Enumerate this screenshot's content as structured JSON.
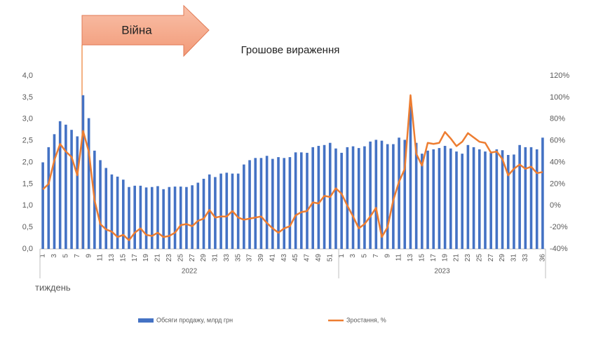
{
  "chart_data": {
    "type": "bar-line",
    "title": "Грошове вираження",
    "annotation": "Війна",
    "x_label": "тиждень",
    "groups": [
      "2022",
      "2023"
    ],
    "categories": [
      "1",
      null,
      "3",
      null,
      "5",
      null,
      "7",
      null,
      "9",
      null,
      "11",
      null,
      "13",
      null,
      "15",
      null,
      "17",
      null,
      "19",
      null,
      "21",
      null,
      "23",
      null,
      "25",
      null,
      "27",
      null,
      "29",
      null,
      "31",
      null,
      "33",
      null,
      "35",
      null,
      "37",
      null,
      "39",
      null,
      "41",
      null,
      "43",
      null,
      "45",
      null,
      "47",
      null,
      "49",
      null,
      "51",
      null,
      "1",
      null,
      "3",
      null,
      "5",
      null,
      "7",
      null,
      "9",
      null,
      "11",
      null,
      "13",
      null,
      "15",
      null,
      "17",
      null,
      "19",
      null,
      "21",
      null,
      "23",
      null,
      "25",
      null,
      "27",
      null,
      "29",
      null,
      "31",
      null,
      "33",
      null,
      null,
      "36"
    ],
    "series": [
      {
        "name": "Обсяги продажу, млрд грн",
        "color": "#4472c4",
        "kind": "bar",
        "axis": "y",
        "values": [
          2.0,
          2.35,
          2.65,
          2.95,
          2.87,
          2.75,
          2.6,
          3.55,
          3.02,
          2.27,
          2.05,
          1.87,
          1.72,
          1.67,
          1.6,
          1.43,
          1.46,
          1.46,
          1.42,
          1.43,
          1.45,
          1.38,
          1.43,
          1.44,
          1.44,
          1.43,
          1.47,
          1.53,
          1.62,
          1.72,
          1.66,
          1.74,
          1.76,
          1.74,
          1.74,
          1.95,
          2.05,
          2.1,
          2.1,
          2.15,
          2.08,
          2.12,
          2.1,
          2.12,
          2.23,
          2.23,
          2.22,
          2.35,
          2.38,
          2.4,
          2.45,
          2.32,
          2.22,
          2.35,
          2.37,
          2.33,
          2.37,
          2.48,
          2.52,
          2.5,
          2.42,
          2.42,
          2.57,
          2.52,
          3.3,
          2.45,
          2.2,
          2.27,
          2.3,
          2.33,
          2.38,
          2.32,
          2.25,
          2.2,
          2.4,
          2.35,
          2.3,
          2.25,
          2.22,
          2.3,
          2.28,
          2.17,
          2.18,
          2.4,
          2.35,
          2.35,
          2.3,
          2.57
        ]
      },
      {
        "name": "Зростання, %",
        "color": "#ed7d31",
        "kind": "line",
        "axis": "y2",
        "values": [
          15,
          20,
          42,
          57,
          50,
          45,
          28,
          69,
          50,
          5,
          -17,
          -22,
          -24,
          -29,
          -27,
          -32,
          -25,
          -21,
          -27,
          -28,
          -25,
          -29,
          -28,
          -25,
          -18,
          -17,
          -19,
          -14,
          -12,
          -4,
          -11,
          -10,
          -10,
          -5,
          -11,
          -13,
          -12,
          -11,
          -10,
          -16,
          -21,
          -25,
          -21,
          -19,
          -9,
          -6,
          -5,
          3,
          2,
          9,
          8,
          16,
          11,
          0,
          -10,
          -21,
          -17,
          -10,
          -2,
          -29,
          -20,
          5,
          22,
          34,
          102,
          48,
          37,
          58,
          57,
          58,
          68,
          62,
          55,
          59,
          67,
          63,
          59,
          58,
          49,
          50,
          43,
          28,
          34,
          38,
          34,
          36,
          30,
          31
        ]
      }
    ],
    "ylim": [
      0,
      4
    ],
    "yticks": [
      {
        "value": 0,
        "label": "0,0"
      },
      {
        "value": 0.5,
        "label": "0,5"
      },
      {
        "value": 1,
        "label": "1,0"
      },
      {
        "value": 1.5,
        "label": "1,5"
      },
      {
        "value": 2,
        "label": "2,0"
      },
      {
        "value": 2.5,
        "label": "2,5"
      },
      {
        "value": 3,
        "label": "3,0"
      },
      {
        "value": 3.5,
        "label": "3,5"
      },
      {
        "value": 4,
        "label": "4,0"
      }
    ],
    "y2lim": [
      -40,
      120
    ],
    "y2ticks": [
      {
        "value": -40,
        "label": "-40%"
      },
      {
        "value": -20,
        "label": "-20%"
      },
      {
        "value": 0,
        "label": "0%"
      },
      {
        "value": 20,
        "label": "20%"
      },
      {
        "value": 40,
        "label": "40%"
      },
      {
        "value": 60,
        "label": "60%"
      },
      {
        "value": 80,
        "label": "80%"
      },
      {
        "value": 100,
        "label": "100%"
      },
      {
        "value": 120,
        "label": "120%"
      }
    ]
  }
}
